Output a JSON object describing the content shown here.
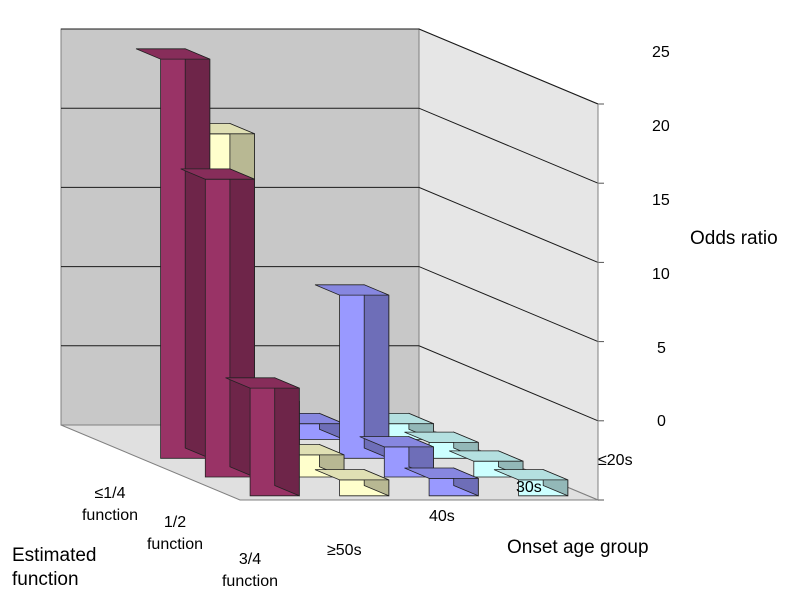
{
  "chart_data": {
    "type": "bar3d",
    "zlabel": "Odds ratio",
    "xlabel": "Onset age group",
    "ylabel_line1": "Estimated",
    "ylabel_line2": "function",
    "age_groups": [
      "≥50s",
      "40s",
      "30s",
      "≤20s"
    ],
    "function_levels": [
      {
        "line1": "3/4",
        "line2": "function"
      },
      {
        "line1": "1/2",
        "line2": "function"
      },
      {
        "line1": "≤1/4",
        "line2": "function"
      }
    ],
    "zticks": [
      "0",
      "5",
      "10",
      "15",
      "20",
      "25"
    ],
    "zlim": [
      0,
      25
    ],
    "series": [
      {
        "function": "3/4",
        "color": "#CCFFFF",
        "values": [
          1.0,
          1.0,
          1.0,
          1.0
        ]
      },
      {
        "function": "1/2",
        "color": "#9999FF",
        "values": [
          1.1,
          1.9,
          10.3,
          1.0
        ]
      },
      {
        "function": "≤1/4",
        "color": "#FFFFCC",
        "values": [
          1.0,
          1.4,
          3.6,
          19.3
        ]
      },
      {
        "function": "≤20s",
        "color": "#993366",
        "values": [
          6.8,
          18.8,
          25.2,
          0
        ]
      }
    ]
  }
}
